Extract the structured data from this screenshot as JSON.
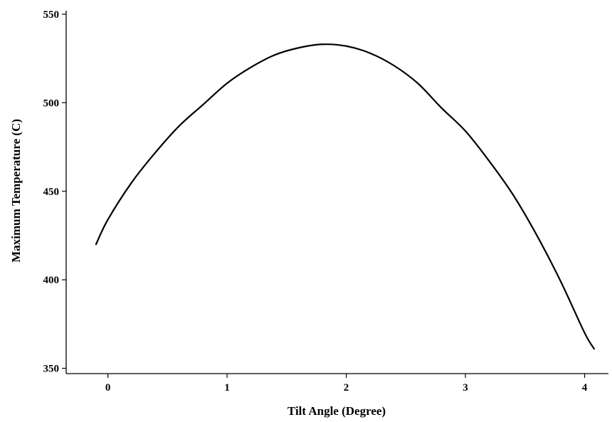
{
  "chart_data": {
    "type": "line",
    "title": "",
    "xlabel": "Tilt Angle (Degree)",
    "ylabel": "Maximum Temperature (C)",
    "xlim": [
      -0.35,
      4.2
    ],
    "ylim": [
      347,
      552
    ],
    "xticks": [
      0,
      1,
      2,
      3,
      4
    ],
    "xtick_labels": [
      "0",
      "1",
      "2",
      "3",
      "4"
    ],
    "yticks": [
      350,
      400,
      450,
      500,
      550
    ],
    "ytick_labels": [
      "350",
      "400",
      "450",
      "500",
      "550"
    ],
    "grid": false,
    "legend": "none",
    "line_color": "#000000",
    "series": [
      {
        "x": [
          -0.1,
          0.0,
          0.2,
          0.4,
          0.6,
          0.8,
          1.0,
          1.2,
          1.4,
          1.6,
          1.8,
          2.0,
          2.2,
          2.4,
          2.6,
          2.8,
          3.0,
          3.2,
          3.4,
          3.6,
          3.8,
          4.0,
          4.08
        ],
        "y": [
          420,
          434,
          455,
          472,
          487,
          499,
          511,
          520,
          527,
          531,
          533,
          532,
          528,
          521,
          511,
          497,
          484,
          467,
          448,
          425,
          399,
          370,
          361
        ]
      }
    ]
  }
}
